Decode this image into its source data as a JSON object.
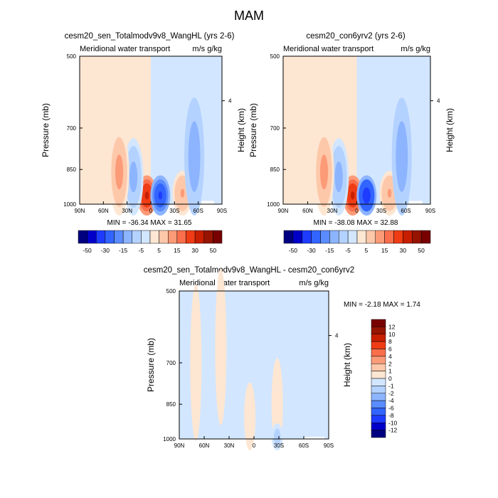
{
  "page_title": "MAM",
  "chart_data": [
    {
      "type": "heatmap",
      "title": "cesm20_sen_Totalmodv9v8_WangHL (yrs 2-6)",
      "subtitle_left": "Meridional water transport",
      "subtitle_right": "m/s g/kg",
      "xlabel": "",
      "ylabel": "Pressure (mb)",
      "ylabel_right": "Height (km)",
      "x_ticks": [
        "90N",
        "60N",
        "30N",
        "0",
        "30S",
        "60S",
        "90S"
      ],
      "y_ticks": [
        "500",
        "700",
        "850",
        "1000"
      ],
      "y_right_ticks": [
        "4"
      ],
      "min_max_text": "MIN = -36.34  MAX =  31.65",
      "min": -36.34,
      "max": 31.65,
      "colorbar_levels": [
        -50,
        -40,
        -30,
        -20,
        -15,
        -10,
        -5,
        -1,
        1,
        5,
        10,
        15,
        20,
        30,
        40,
        50
      ],
      "colorbar_labels": [
        "-50",
        "-30",
        "-15",
        "-5",
        "5",
        "15",
        "30",
        "50"
      ],
      "features": [
        {
          "lat": 5,
          "p": 960,
          "value": 30
        },
        {
          "lat": -12,
          "p": 960,
          "value": -35
        },
        {
          "lat": -40,
          "p": 950,
          "value": 10
        },
        {
          "lat": -55,
          "p": 800,
          "value": -15
        },
        {
          "lat": 22,
          "p": 880,
          "value": -12
        },
        {
          "lat": 40,
          "p": 860,
          "value": 12
        }
      ]
    },
    {
      "type": "heatmap",
      "title": "cesm20_con6yrv2 (yrs 2-6)",
      "subtitle_left": "Meridional water transport",
      "subtitle_right": "m/s g/kg",
      "xlabel": "",
      "ylabel": "Pressure (mb)",
      "ylabel_right": "Height (km)",
      "x_ticks": [
        "90N",
        "60N",
        "30N",
        "0",
        "30S",
        "60S",
        "90S"
      ],
      "y_ticks": [
        "500",
        "700",
        "850",
        "1000"
      ],
      "y_right_ticks": [
        "4"
      ],
      "min_max_text": "MIN = -38.08  MAX =  32.88",
      "min": -38.08,
      "max": 32.88,
      "colorbar_levels": [
        -50,
        -40,
        -30,
        -20,
        -15,
        -10,
        -5,
        -1,
        1,
        5,
        10,
        15,
        20,
        30,
        40,
        50
      ],
      "colorbar_labels": [
        "-50",
        "-30",
        "-15",
        "-5",
        "5",
        "15",
        "30",
        "50"
      ],
      "features": [
        {
          "lat": 5,
          "p": 960,
          "value": 32
        },
        {
          "lat": -12,
          "p": 960,
          "value": -37
        },
        {
          "lat": -40,
          "p": 950,
          "value": 10
        },
        {
          "lat": -55,
          "p": 800,
          "value": -15
        },
        {
          "lat": 22,
          "p": 880,
          "value": -12
        },
        {
          "lat": 40,
          "p": 860,
          "value": 12
        }
      ]
    },
    {
      "type": "heatmap",
      "title": "cesm20_sen_Totalmodv9v8_WangHL - cesm20_con6yrv2",
      "subtitle_left": "Meridional water transport",
      "subtitle_right": "m/s g/kg",
      "xlabel": "",
      "ylabel": "Pressure (mb)",
      "ylabel_right": "Height (km)",
      "x_ticks": [
        "90N",
        "60N",
        "30N",
        "0",
        "30S",
        "60S",
        "90S"
      ],
      "y_ticks": [
        "500",
        "700",
        "850",
        "1000"
      ],
      "y_right_ticks": [
        "4"
      ],
      "min_max_text": "MIN = -2.18  MAX =  1.74",
      "min": -2.18,
      "max": 1.74,
      "colorbar_levels": [
        -12,
        -10,
        -8,
        -6,
        -4,
        -2,
        -1,
        0,
        1,
        2,
        4,
        6,
        8,
        10,
        12
      ],
      "colorbar_labels": [
        "12",
        "10",
        "8",
        "6",
        "4",
        "2",
        "1",
        "0",
        "-1",
        "-2",
        "-4",
        "-6",
        "-8",
        "-10",
        "-12"
      ],
      "features": [
        {
          "lat": 70,
          "p": 700,
          "value": 0.5
        },
        {
          "lat": 40,
          "p": 650,
          "value": 0.5
        },
        {
          "lat": 5,
          "p": 900,
          "value": 0.5
        },
        {
          "lat": -28,
          "p": 850,
          "value": 0.5
        },
        {
          "lat": -28,
          "p": 990,
          "value": -1.5
        }
      ]
    }
  ],
  "colors": {
    "diverging": [
      "#000080",
      "#0000c8",
      "#1e3cff",
      "#3264ff",
      "#5a8cff",
      "#8cb4ff",
      "#b4d2ff",
      "#d2e6ff",
      "#fde6d2",
      "#fdc8aa",
      "#fc9b78",
      "#fa6e4b",
      "#f03c14",
      "#c81e00",
      "#961400",
      "#780000"
    ]
  }
}
